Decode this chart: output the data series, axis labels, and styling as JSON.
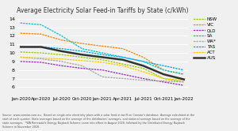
{
  "title": "Average Electricity Solar Feed-in Tariffs by State (c/kWh)",
  "x_labels": [
    "Jan-2020",
    "Apr-2020",
    "Jul-2020",
    "Oct-2020",
    "Jan-2021",
    "Apr-2021",
    "Jul-2021",
    "Oct-2021",
    "Jan-2022"
  ],
  "ylim": [
    5,
    14.2
  ],
  "yticks": [
    6,
    7,
    8,
    9,
    10,
    11,
    12,
    13,
    14
  ],
  "series": {
    "NSW": {
      "color": "#99cc00",
      "values": [
        10.1,
        10.0,
        9.8,
        9.5,
        9.2,
        8.7,
        8.2,
        7.0,
        6.6
      ]
    },
    "VIC": {
      "color": "#ff8800",
      "values": [
        12.3,
        12.2,
        11.5,
        11.1,
        10.8,
        10.5,
        9.5,
        8.0,
        7.5
      ]
    },
    "QLD": {
      "color": "#9933cc",
      "values": [
        9.0,
        8.9,
        8.5,
        8.2,
        8.0,
        7.5,
        7.0,
        6.6,
        6.2
      ]
    },
    "SA": {
      "color": "#00cccc",
      "values": [
        13.5,
        13.3,
        12.0,
        10.5,
        10.0,
        9.5,
        9.0,
        8.0,
        7.5
      ]
    },
    "WA*": {
      "color": "#aaaaaa",
      "values": [
        9.5,
        9.3,
        9.0,
        8.5,
        7.2,
        7.0,
        6.8,
        6.7,
        6.6
      ]
    },
    "TAS": {
      "color": "#00aaff",
      "values": [
        10.7,
        10.7,
        10.5,
        10.2,
        9.8,
        9.5,
        9.0,
        8.5,
        8.0
      ]
    },
    "ACT": {
      "color": "#ffcc00",
      "values": [
        9.5,
        9.4,
        9.3,
        9.1,
        8.9,
        8.5,
        7.8,
        7.0,
        6.8
      ]
    },
    "AUS": {
      "color": "#333333",
      "values": [
        10.7,
        10.7,
        10.2,
        9.8,
        9.5,
        9.2,
        8.5,
        7.5,
        6.9
      ],
      "linewidth": 1.8,
      "linestyle": "solid"
    }
  },
  "footnote": "Source: www.canstar.com.au.  Based on single-rate electricity plans with a solar feed-in tariff on Canstar's database. Average calculated at the\nstart of each quarter. State averages based on the average of the distributors' averages, and national average based on the average of the\nstate averages.  *WA Renewable Energy Buyback Scheme came into effect in August 2020, followed by the Distributed Energy Buyback\nScheme in November 2020.",
  "background_color": "#f0f0f0"
}
